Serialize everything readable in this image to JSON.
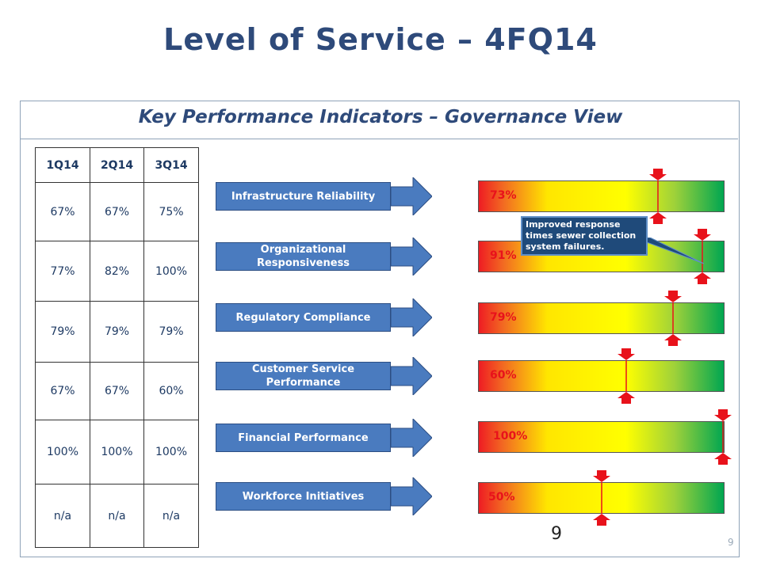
{
  "title": "Level of Service – 4FQ14",
  "subtitle": "Key Performance Indicators – Governance View",
  "table": {
    "headers": [
      "1Q14",
      "2Q14",
      "3Q14"
    ],
    "rows": [
      [
        "67%",
        "67%",
        "75%"
      ],
      [
        "77%",
        "82%",
        "100%"
      ],
      [
        "79%",
        "79%",
        "79%"
      ],
      [
        "67%",
        "67%",
        "60%"
      ],
      [
        "100%",
        "100%",
        "100%"
      ],
      [
        "n/a",
        "n/a",
        "n/a"
      ]
    ]
  },
  "kpis": [
    {
      "label": "Infrastructure Reliability",
      "value": "73%",
      "level": 0.73
    },
    {
      "label": "Organizational Responsiveness",
      "value": "91%",
      "level": 0.91
    },
    {
      "label": "Regulatory Compliance",
      "value": "79%",
      "level": 0.79
    },
    {
      "label": "Customer Service Performance",
      "value": "60%",
      "level": 0.6
    },
    {
      "label": "Financial Performance",
      "value": "100%",
      "level": 1.0
    },
    {
      "label": "Workforce Initiatives",
      "value": "50%",
      "level": 0.5
    }
  ],
  "callout": "Improved response times sewer  collection system failures.",
  "center_number": "9",
  "page_number": "9",
  "colors": {
    "title": "#2e4a7a",
    "label_fill": "#4a7bbf",
    "value_text": "#e8121b",
    "marker": "#e8121b"
  }
}
